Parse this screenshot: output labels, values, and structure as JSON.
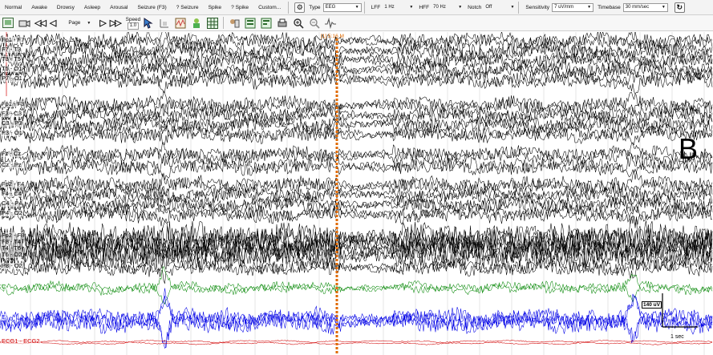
{
  "event_bar": {
    "buttons": [
      "Normal",
      "Awake",
      "Drowsy",
      "Asleep",
      "Arousal",
      "Seizure (F3)",
      "? Seizure",
      "Spike",
      "? Spike",
      "Custom..."
    ],
    "type_label": "Type",
    "type_value": "EEG",
    "lff_label": "LFF",
    "lff_value": "1 Hz",
    "hff_label": "HFF",
    "hff_value": "70 Hz",
    "notch_label": "Notch",
    "notch_value": "Off",
    "sensitivity_label": "Sensitivity",
    "sensitivity_value": "7 uV/mm",
    "timebase_label": "Timebase",
    "timebase_value": "30 mm/sec"
  },
  "tool_bar": {
    "page_label": "Page",
    "speed_label": "Speed",
    "speed_value": "1.0"
  },
  "colors": {
    "trace_black": "#000000",
    "trace_green": "#0a8a0a",
    "trace_blue": "#0000e6",
    "trace_red": "#d10000",
    "marker": "#e06a00",
    "gridline": "#cccccc"
  },
  "channels": [
    {
      "label": "Fp1 - F7",
      "group": "black"
    },
    {
      "label": "F7 - T3",
      "group": "black"
    },
    {
      "label": "T3 - T5",
      "group": "black"
    },
    {
      "label": "T5 - O1",
      "group": "black"
    },
    {
      "label": "P7 - O1",
      "group": "black"
    },
    {
      "label": "Fp1 - F3",
      "group": "black"
    },
    {
      "label": "F3 - C3",
      "group": "black"
    },
    {
      "label": "C3 - P3",
      "group": "black"
    },
    {
      "label": "P3 - O1",
      "group": "black"
    },
    {
      "label": "Fz - Cz",
      "group": "black"
    },
    {
      "label": "Cz - Pz",
      "group": "black"
    },
    {
      "label": "Fp2 - F4",
      "group": "black"
    },
    {
      "label": "F4 - C4",
      "group": "black"
    },
    {
      "label": "C4 - P4",
      "group": "black"
    },
    {
      "label": "P4 - O2",
      "group": "black"
    },
    {
      "label": "Fp2 - F8",
      "group": "black"
    },
    {
      "label": "F8 - T4",
      "group": "black"
    },
    {
      "label": "T4 - T6",
      "group": "black"
    },
    {
      "label": "T6 - O2",
      "group": "black"
    },
    {
      "label": "P8 - O2",
      "group": "black"
    },
    {
      "label": "C",
      "group": "green"
    },
    {
      "label": "E",
      "group": "blue"
    },
    {
      "label": "ECG1 - ECG2",
      "group": "red"
    }
  ],
  "annotation": {
    "marker_label": "[1] 5:16 M",
    "panel_letter": "B",
    "amplitude_cal": "140 uV",
    "time_cal": "1 sec"
  }
}
